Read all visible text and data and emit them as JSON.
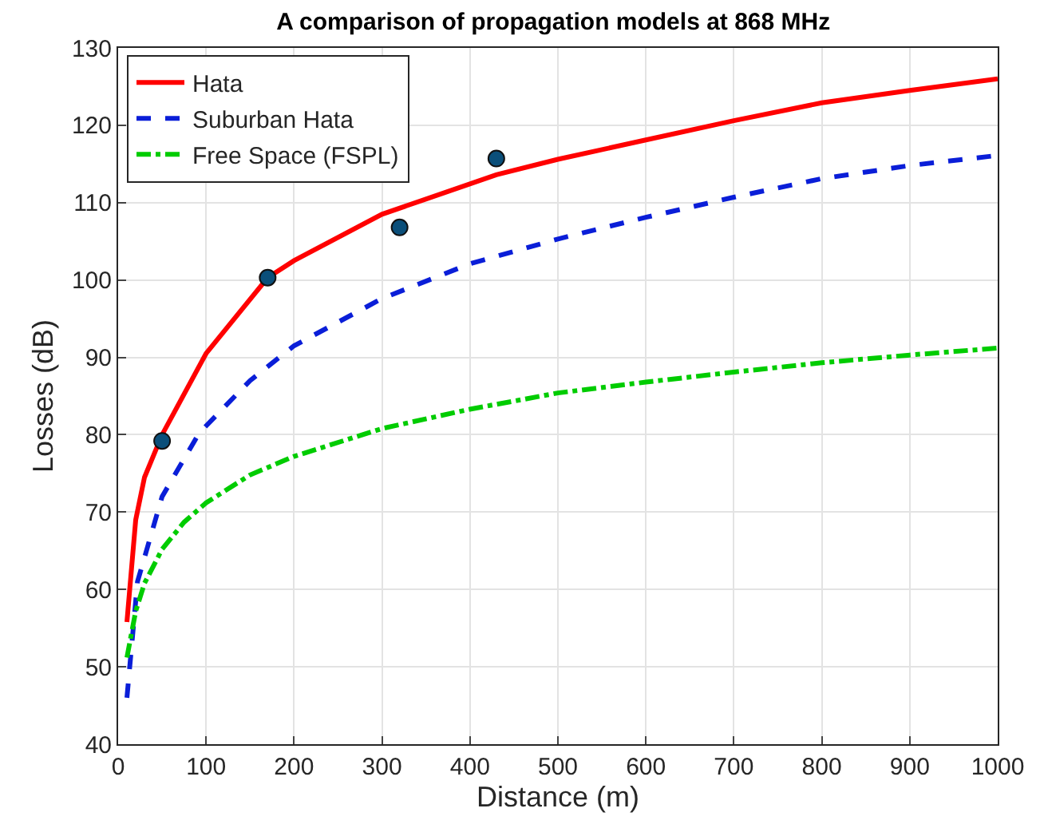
{
  "chart_data": {
    "type": "line",
    "title": "A comparison of propagation models at 868 MHz",
    "xlabel": "Distance (m)",
    "ylabel": "Losses (dB)",
    "xlim": [
      0,
      1000
    ],
    "xticks": [
      0,
      100,
      200,
      300,
      400,
      500,
      600,
      700,
      800,
      900,
      1000
    ],
    "ylim": [
      40,
      130
    ],
    "yticks": [
      40,
      50,
      60,
      70,
      80,
      90,
      100,
      110,
      120,
      130
    ],
    "grid": true,
    "legend": "top left",
    "marker": "none",
    "series": [
      {
        "name": "Hata",
        "color": "#ff0000",
        "line_style": "solid",
        "x": [
          10,
          20,
          30,
          50,
          100,
          170,
          200,
          300,
          430,
          500,
          600,
          700,
          800,
          900,
          1000
        ],
        "values": [
          55.8,
          69,
          74.5,
          80,
          90.5,
          100.3,
          102.5,
          108.5,
          113.6,
          115.6,
          118.1,
          120.6,
          122.9,
          124.5,
          126
        ]
      },
      {
        "name": "Suburban Hata",
        "color": "#0a1ed8",
        "line_style": "dashed",
        "x": [
          10,
          22,
          50,
          92,
          150,
          200,
          300,
          400,
          500,
          600,
          700,
          800,
          900,
          1000
        ],
        "values": [
          46,
          61,
          72,
          80.2,
          87,
          91.5,
          97.6,
          102.1,
          105.3,
          108.1,
          110.7,
          113.1,
          114.8,
          116.1
        ]
      },
      {
        "name": "Free Space (FSPL)",
        "color": "#00cc00",
        "line_style": "dashdot",
        "x": [
          10,
          20,
          30,
          50,
          75,
          100,
          150,
          200,
          300,
          400,
          500,
          600,
          700,
          800,
          900,
          1000
        ],
        "values": [
          51.2,
          57.2,
          60.8,
          65.2,
          68.7,
          71.2,
          74.8,
          77.2,
          80.8,
          83.3,
          85.4,
          86.8,
          88.1,
          89.3,
          90.3,
          91.2
        ]
      },
      {
        "type": "scatter",
        "marker": "circle",
        "color": "#0b4f7a",
        "x": [
          50,
          170,
          320,
          430
        ],
        "values": [
          79.2,
          100.3,
          106.8,
          115.7
        ]
      }
    ]
  }
}
